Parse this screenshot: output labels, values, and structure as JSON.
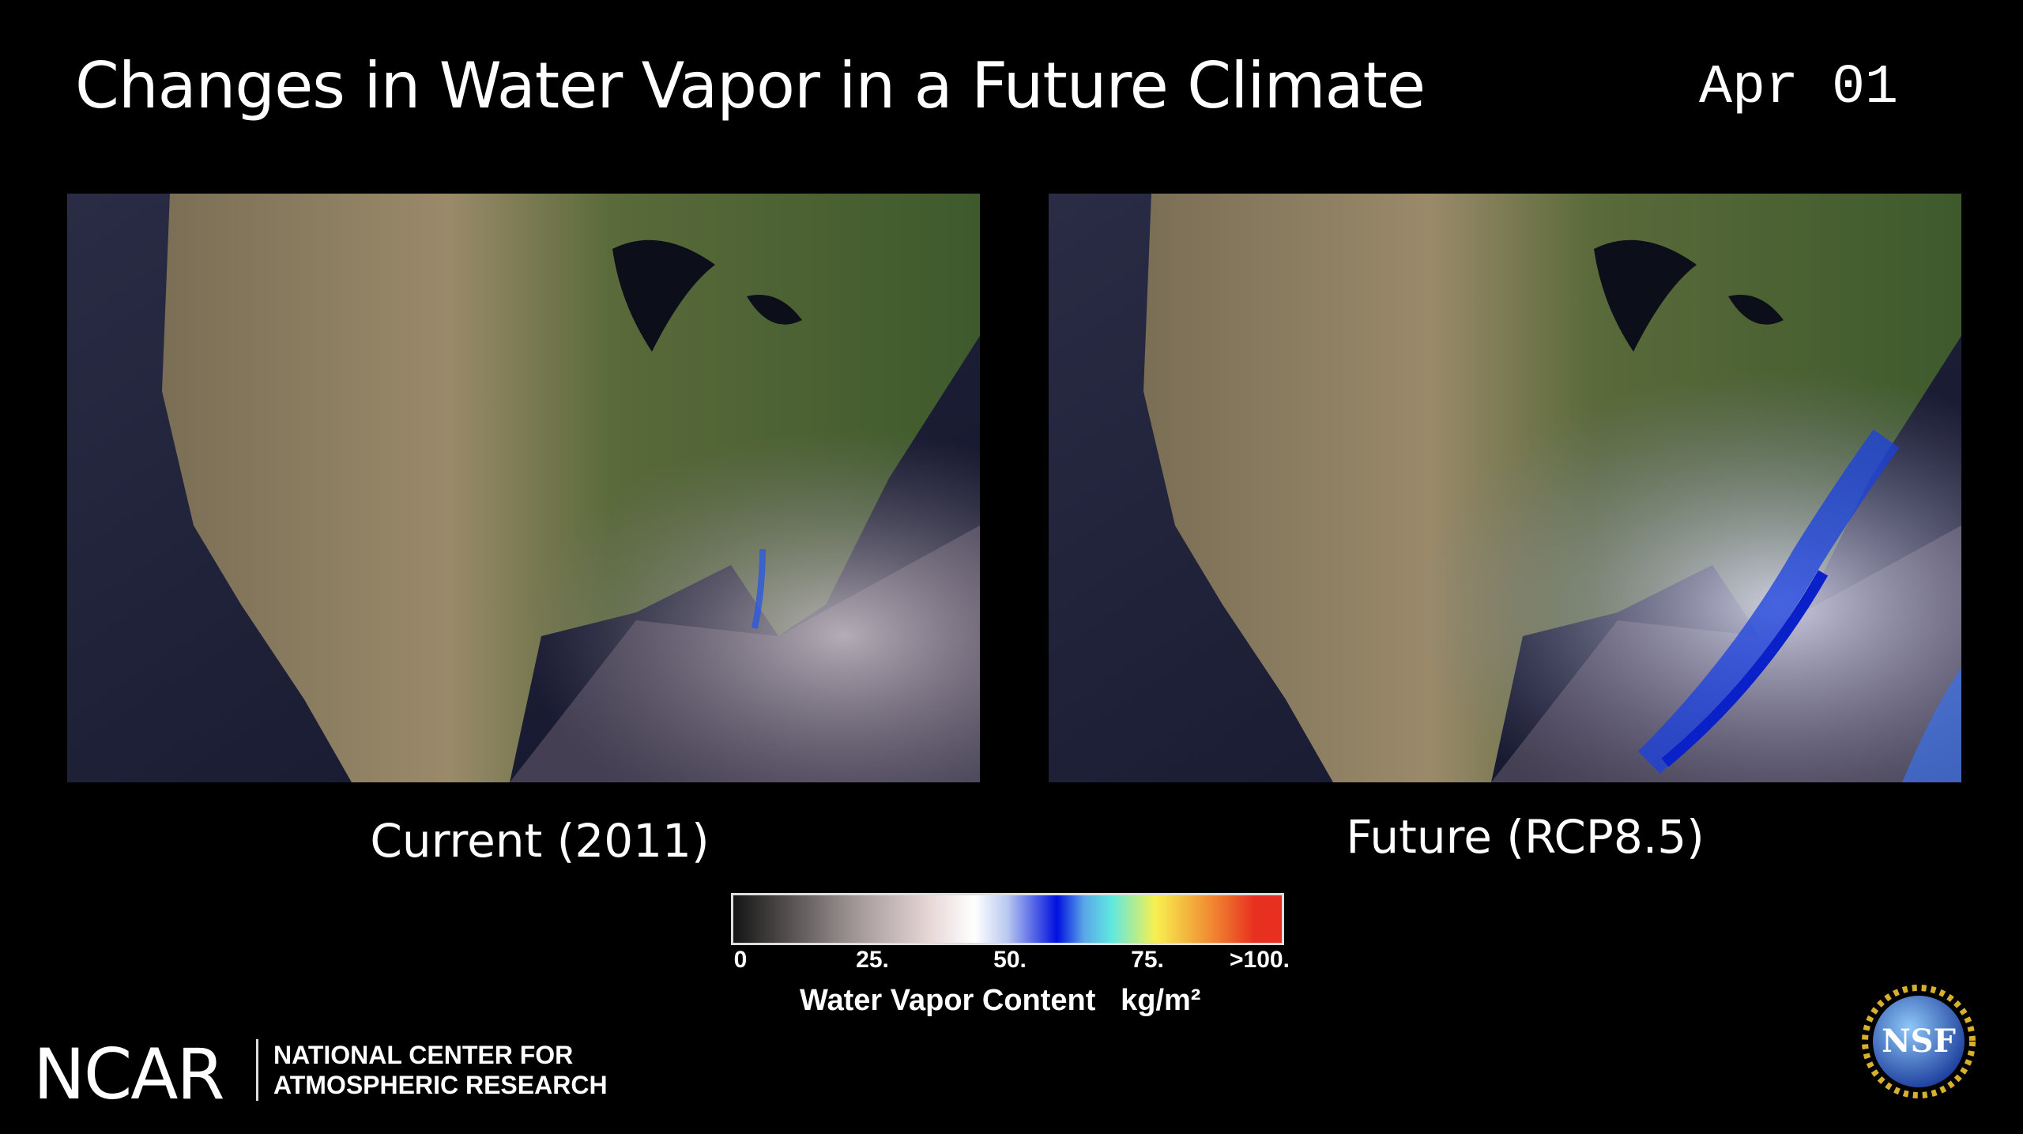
{
  "header": {
    "title": "Changes in Water Vapor in a Future Climate",
    "date": "Apr 01"
  },
  "panels": [
    {
      "label": "Current (2011)"
    },
    {
      "label": "Future (RCP8.5)"
    }
  ],
  "colorbar": {
    "ticks": [
      "0",
      "25.",
      "50.",
      "75.",
      ">100."
    ],
    "label": "Water Vapor Content",
    "unit": "kg/m²",
    "colors": [
      "#151515",
      "#a09595",
      "#ffffff",
      "#0010e0",
      "#60e8e0",
      "#f8f050",
      "#f08030",
      "#e83020"
    ]
  },
  "footer": {
    "logo": "NCAR",
    "org_line1": "NATIONAL CENTER FOR",
    "org_line2": "ATMOSPHERIC RESEARCH",
    "nsf_logo": "NSF"
  }
}
